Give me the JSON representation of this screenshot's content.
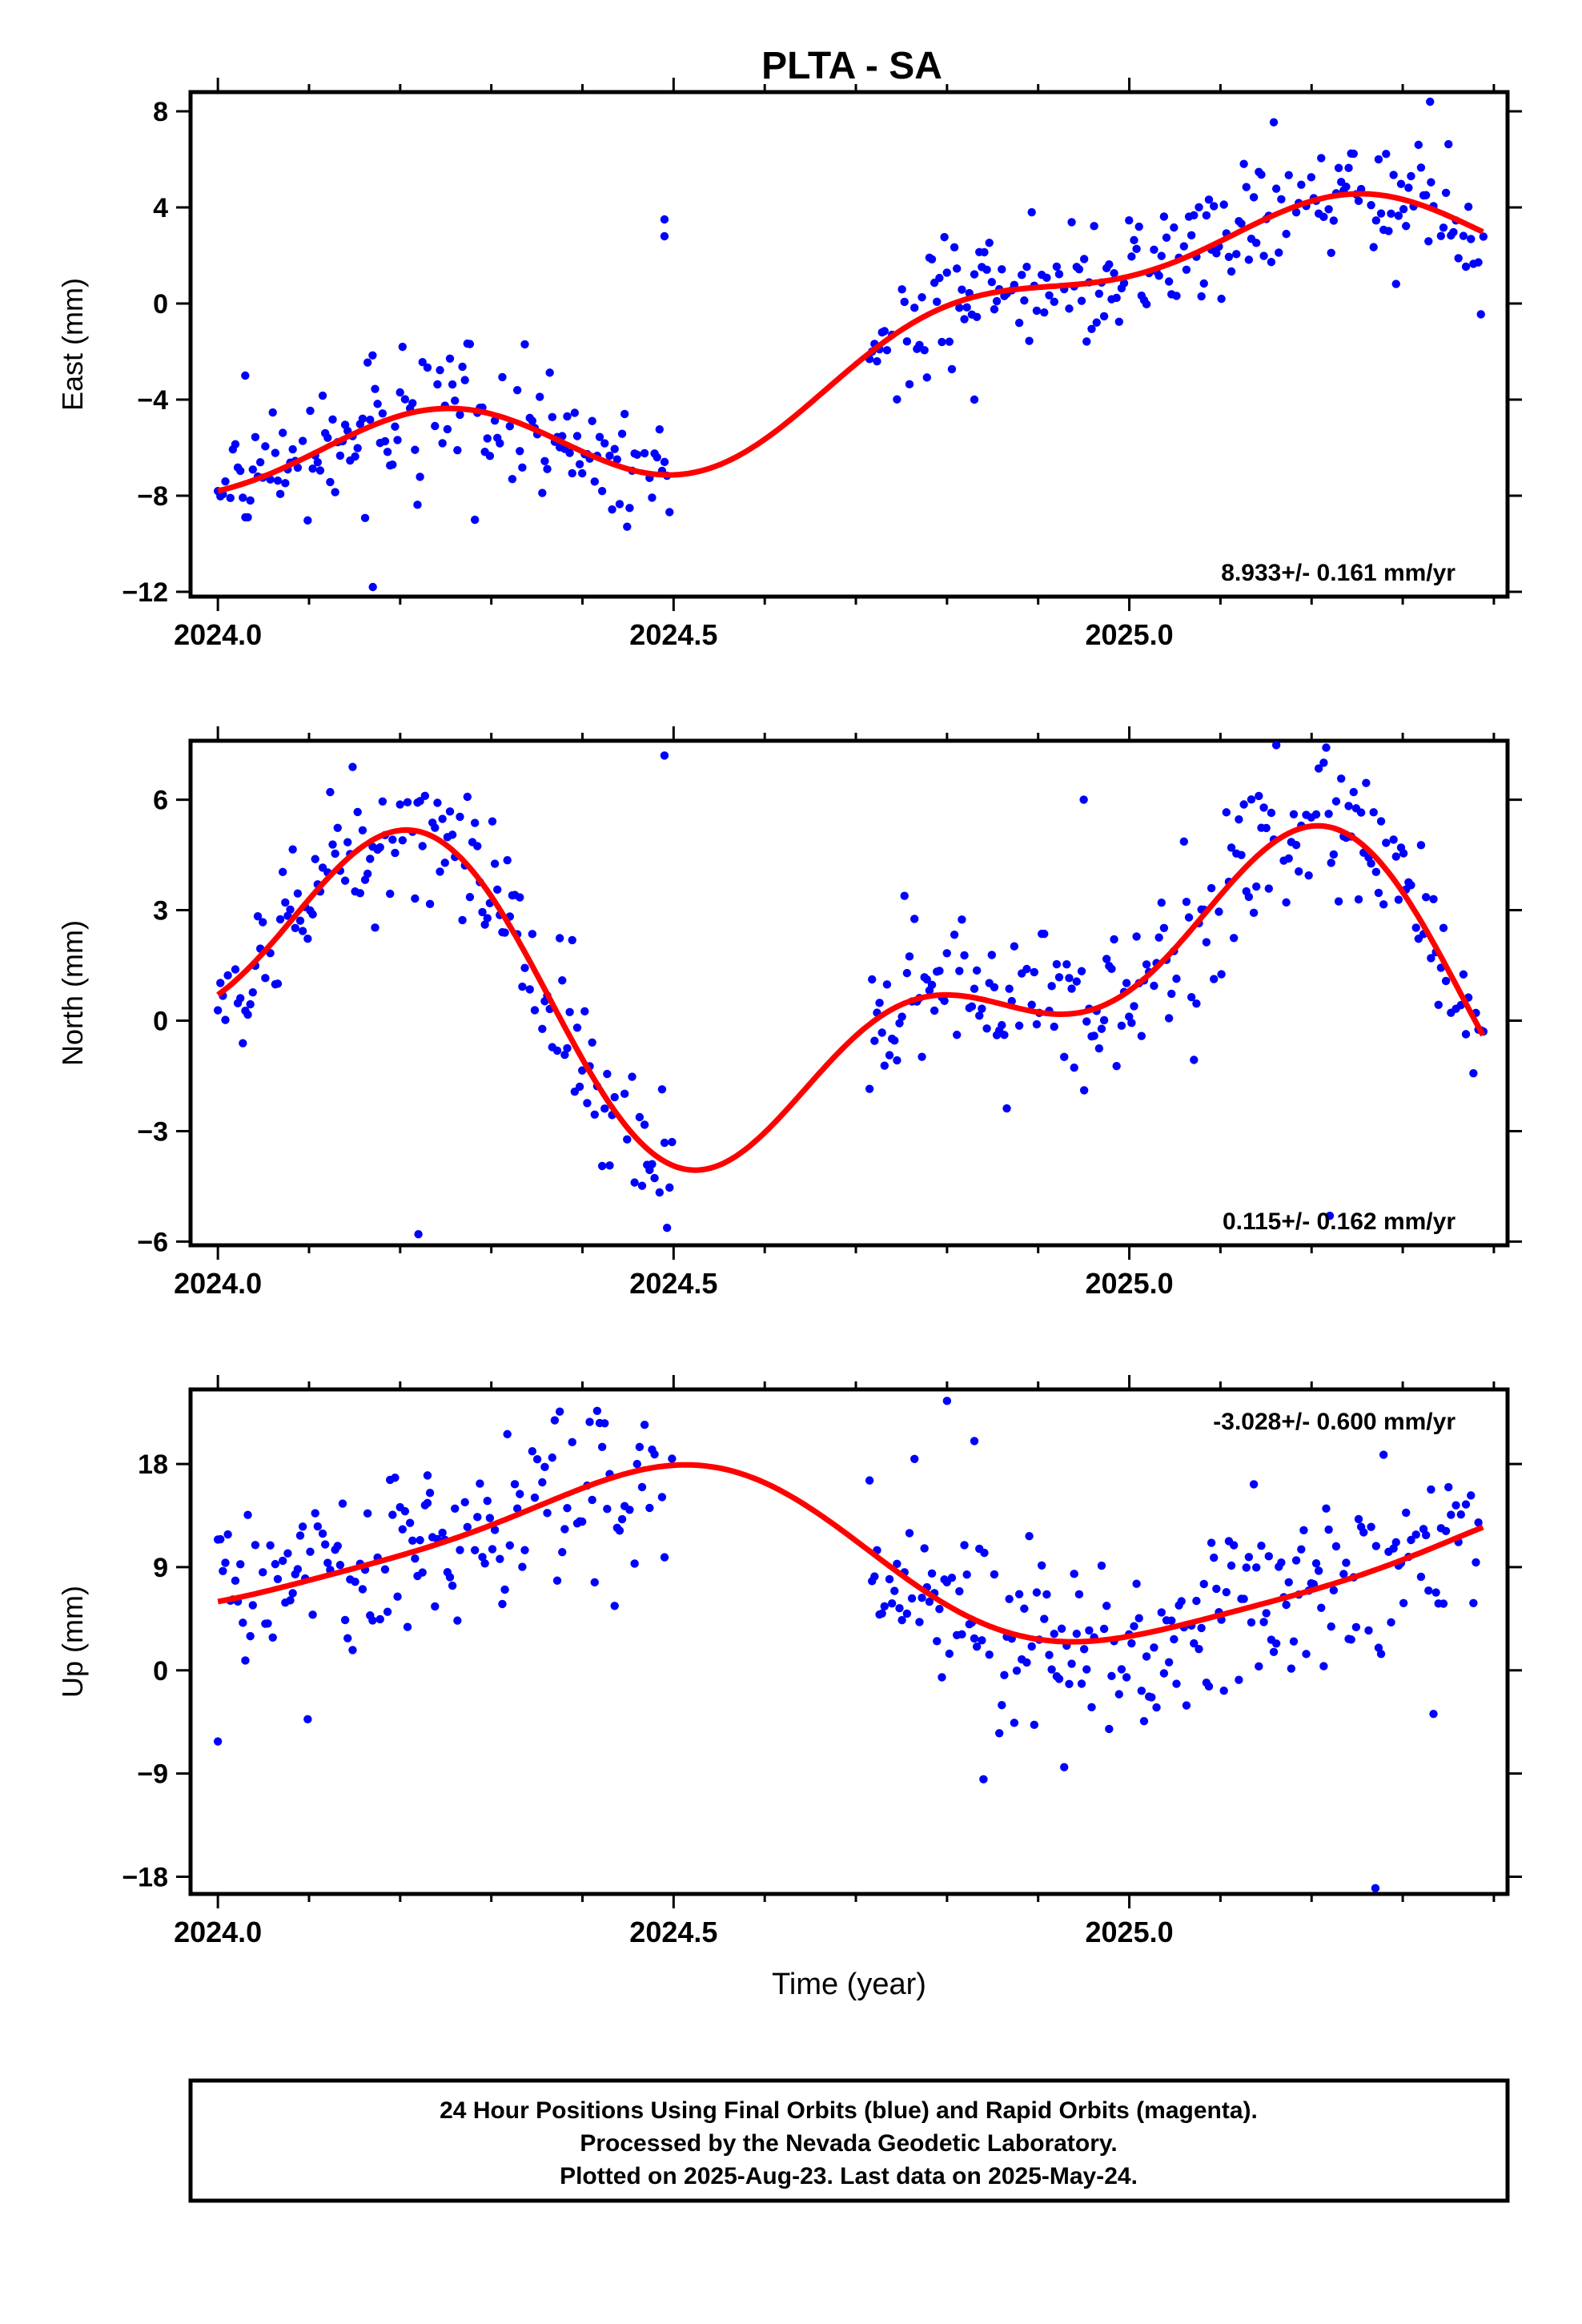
{
  "figure": {
    "title": "PLTA - SA",
    "footer": {
      "lines": [
        "24 Hour Positions Using Final Orbits (blue) and Rapid Orbits (magenta).",
        "Processed by the Nevada Geodetic Laboratory.",
        "Plotted on 2025-Aug-23. Last data on 2025-May-24."
      ]
    },
    "colors": {
      "points": "#0000ff",
      "fit": "#ff0000",
      "axes": "#000000"
    }
  },
  "chart_data": [
    {
      "type": "scatter",
      "ylabel": "East (mm)",
      "xlabel": "",
      "xlim": [
        2023.97,
        2025.415
      ],
      "ylim": [
        -12.2,
        8.8
      ],
      "xticks": [
        {
          "value": 2024.0,
          "label": "2024.0"
        },
        {
          "value": 2024.5,
          "label": "2024.5"
        },
        {
          "value": 2025.0,
          "label": "2025.0"
        }
      ],
      "yticks": [
        {
          "value": -12,
          "label": "−12"
        },
        {
          "value": -8,
          "label": "−8"
        },
        {
          "value": -4,
          "label": "−4"
        },
        {
          "value": 0,
          "label": "0"
        },
        {
          "value": 4,
          "label": "4"
        },
        {
          "value": 8,
          "label": "8"
        }
      ],
      "rate_label": "8.933+/- 0.161 mm/yr",
      "rate_position": "bottom-right",
      "fit_model": {
        "trend_mm_per_yr": 8.933,
        "t0": 2024.0,
        "offset": -7.8,
        "annual": {
          "cos": -1.9,
          "sin": 0.6
        },
        "semiannual": {
          "cos": 1.25,
          "sin": -0.3
        }
      },
      "points": {
        "segments": [
          [
            2024.0,
            2024.5
          ],
          [
            2024.715,
            2025.39
          ]
        ],
        "daily_samples": true,
        "scatter_mm": 1.3,
        "outliers": [
          [
            2024.03,
            -3.0
          ],
          [
            2024.17,
            -11.8
          ],
          [
            2024.49,
            3.5
          ],
          [
            2024.49,
            2.8
          ],
          [
            2024.83,
            -4.0
          ],
          [
            2025.33,
            8.4
          ]
        ]
      }
    },
    {
      "type": "scatter",
      "ylabel": "North (mm)",
      "xlabel": "",
      "xlim": [
        2023.97,
        2025.415
      ],
      "ylim": [
        -6.1,
        7.6
      ],
      "xticks": [
        {
          "value": 2024.0,
          "label": "2024.0"
        },
        {
          "value": 2024.5,
          "label": "2024.5"
        },
        {
          "value": 2025.0,
          "label": "2025.0"
        }
      ],
      "yticks": [
        {
          "value": -6,
          "label": "−6"
        },
        {
          "value": -3,
          "label": "−3"
        },
        {
          "value": 0,
          "label": "0"
        },
        {
          "value": 3,
          "label": "3"
        },
        {
          "value": 6,
          "label": "6"
        }
      ],
      "rate_label": "0.115+/- 0.162 mm/yr",
      "rate_position": "bottom-right",
      "fit_model": {
        "trend_mm_per_yr": 0.115,
        "t0": 2024.0,
        "offset": 0.7,
        "annual": {
          "cos": -2.35,
          "sin": 2.2
        },
        "semiannual": {
          "cos": 2.1,
          "sin": 0.3
        }
      },
      "points": {
        "segments": [
          [
            2024.0,
            2024.5
          ],
          [
            2024.715,
            2025.39
          ]
        ],
        "daily_samples": true,
        "scatter_mm": 1.1,
        "outliers": [
          [
            2024.22,
            -5.8
          ],
          [
            2024.49,
            7.2
          ],
          [
            2024.95,
            6.0
          ],
          [
            2025.22,
            -5.3
          ]
        ]
      }
    },
    {
      "type": "scatter",
      "ylabel": "Up (mm)",
      "xlabel": "Time (year)",
      "xlim": [
        2023.97,
        2025.415
      ],
      "ylim": [
        -19.5,
        24.5
      ],
      "xticks": [
        {
          "value": 2024.0,
          "label": "2024.0"
        },
        {
          "value": 2024.5,
          "label": "2024.5"
        },
        {
          "value": 2025.0,
          "label": "2025.0"
        }
      ],
      "yticks": [
        {
          "value": -18,
          "label": "−18"
        },
        {
          "value": -9,
          "label": "−9"
        },
        {
          "value": 0,
          "label": "0"
        },
        {
          "value": 9,
          "label": "9"
        },
        {
          "value": 18,
          "label": "18"
        }
      ],
      "rate_label": "-3.028+/- 0.600 mm/yr",
      "rate_position": "top-right",
      "fit_model": {
        "trend_mm_per_yr": -3.028,
        "t0": 2024.0,
        "offset": 6.0,
        "annual": {
          "cos": 6.7,
          "sin": 0.7
        },
        "semiannual": {
          "cos": -0.7,
          "sin": 1.0
        }
      },
      "points": {
        "segments": [
          [
            2024.0,
            2024.5
          ],
          [
            2024.715,
            2025.39
          ]
        ],
        "daily_samples": true,
        "scatter_mm": 4.2,
        "outliers": [
          [
            2024.0,
            -6.2
          ],
          [
            2024.23,
            17.0
          ],
          [
            2024.8,
            23.5
          ],
          [
            2024.83,
            20.0
          ],
          [
            2024.84,
            -9.5
          ],
          [
            2025.27,
            -19.0
          ]
        ]
      }
    }
  ]
}
